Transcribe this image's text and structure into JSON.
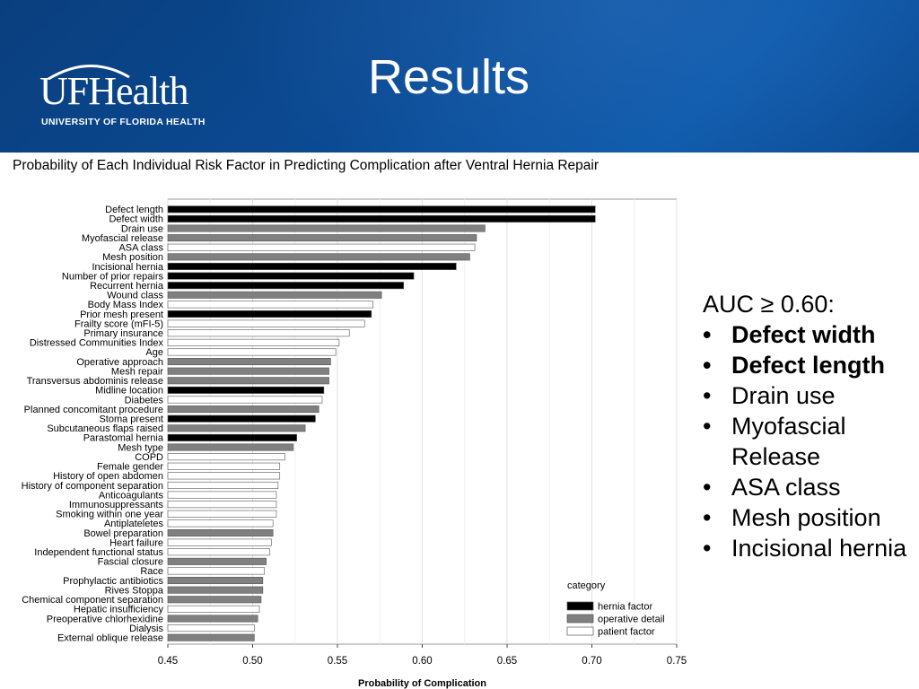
{
  "slide": {
    "title": "Results",
    "logo": {
      "wordmark": "UFHealth",
      "subtitle": "UNIVERSITY OF FLORIDA HEALTH"
    }
  },
  "colors": {
    "header_bg": "#0b4a93",
    "hernia_factor": "#000000",
    "operative_detail": "#808080",
    "patient_factor": "#ffffff"
  },
  "chart_data": {
    "type": "bar",
    "orientation": "horizontal",
    "title": "Probability of Each Individual Risk Factor in Predicting Complication after Ventral Hernia Repair",
    "xlabel": "Probability of Complication",
    "ylabel": "",
    "xlim": [
      0.45,
      0.75
    ],
    "xticks": [
      "0.45",
      "0.50",
      "0.55",
      "0.60",
      "0.65",
      "0.70",
      "0.75"
    ],
    "grid": true,
    "legend": {
      "title": "category",
      "placement": "bottom-right",
      "entries": [
        {
          "label": "hernia factor",
          "key": "hernia"
        },
        {
          "label": "operative detail",
          "key": "operative"
        },
        {
          "label": "patient factor",
          "key": "patient"
        }
      ]
    },
    "bars": [
      {
        "label": "Defect length",
        "value": 0.702,
        "category": "hernia"
      },
      {
        "label": "Defect width",
        "value": 0.702,
        "category": "hernia"
      },
      {
        "label": "Drain use",
        "value": 0.637,
        "category": "operative"
      },
      {
        "label": "Myofascial release",
        "value": 0.632,
        "category": "operative"
      },
      {
        "label": "ASA class",
        "value": 0.631,
        "category": "patient"
      },
      {
        "label": "Mesh position",
        "value": 0.628,
        "category": "operative"
      },
      {
        "label": "Incisional hernia",
        "value": 0.62,
        "category": "hernia"
      },
      {
        "label": "Number of prior repairs",
        "value": 0.595,
        "category": "hernia"
      },
      {
        "label": "Recurrent hernia",
        "value": 0.589,
        "category": "hernia"
      },
      {
        "label": "Wound class",
        "value": 0.576,
        "category": "operative"
      },
      {
        "label": "Body Mass Index",
        "value": 0.571,
        "category": "patient"
      },
      {
        "label": "Prior mesh present",
        "value": 0.57,
        "category": "hernia"
      },
      {
        "label": "Frailty score (mFI-5)",
        "value": 0.566,
        "category": "patient"
      },
      {
        "label": "Primary insurance",
        "value": 0.557,
        "category": "patient"
      },
      {
        "label": "Distressed Communities Index",
        "value": 0.551,
        "category": "patient"
      },
      {
        "label": "Age",
        "value": 0.549,
        "category": "patient"
      },
      {
        "label": "Operative approach",
        "value": 0.546,
        "category": "operative"
      },
      {
        "label": "Mesh repair",
        "value": 0.545,
        "category": "operative"
      },
      {
        "label": "Transversus abdominis release",
        "value": 0.545,
        "category": "operative"
      },
      {
        "label": "Midline location",
        "value": 0.542,
        "category": "hernia"
      },
      {
        "label": "Diabetes",
        "value": 0.541,
        "category": "patient"
      },
      {
        "label": "Planned concomitant procedure",
        "value": 0.539,
        "category": "operative"
      },
      {
        "label": "Stoma present",
        "value": 0.537,
        "category": "hernia"
      },
      {
        "label": "Subcutaneous flaps raised",
        "value": 0.531,
        "category": "operative"
      },
      {
        "label": "Parastomal hernia",
        "value": 0.526,
        "category": "hernia"
      },
      {
        "label": "Mesh type",
        "value": 0.524,
        "category": "operative"
      },
      {
        "label": "COPD",
        "value": 0.519,
        "category": "patient"
      },
      {
        "label": "Female gender",
        "value": 0.516,
        "category": "patient"
      },
      {
        "label": "History of open abdomen",
        "value": 0.516,
        "category": "patient"
      },
      {
        "label": "History of component separation",
        "value": 0.515,
        "category": "patient"
      },
      {
        "label": "Anticoagulants",
        "value": 0.514,
        "category": "patient"
      },
      {
        "label": "Immunosuppressants",
        "value": 0.514,
        "category": "patient"
      },
      {
        "label": "Smoking within one year",
        "value": 0.514,
        "category": "patient"
      },
      {
        "label": "Antiplateletes",
        "value": 0.512,
        "category": "patient"
      },
      {
        "label": "Bowel preparation",
        "value": 0.512,
        "category": "operative"
      },
      {
        "label": "Heart failure",
        "value": 0.511,
        "category": "patient"
      },
      {
        "label": "Independent functional status",
        "value": 0.51,
        "category": "patient"
      },
      {
        "label": "Fascial closure",
        "value": 0.508,
        "category": "operative"
      },
      {
        "label": "Race",
        "value": 0.507,
        "category": "patient"
      },
      {
        "label": "Prophylactic antibiotics",
        "value": 0.506,
        "category": "operative"
      },
      {
        "label": "Rives Stoppa",
        "value": 0.506,
        "category": "operative"
      },
      {
        "label": "Chemical component separation",
        "value": 0.505,
        "category": "operative"
      },
      {
        "label": "Hepatic insufficiency",
        "value": 0.504,
        "category": "patient"
      },
      {
        "label": "Preoperative chlorhexidine",
        "value": 0.503,
        "category": "operative"
      },
      {
        "label": "Dialysis",
        "value": 0.501,
        "category": "patient"
      },
      {
        "label": "External oblique release",
        "value": 0.501,
        "category": "operative"
      }
    ]
  },
  "summary": {
    "heading": "AUC ≥ 0.60:",
    "items": [
      {
        "text": "Defect width",
        "bold": true
      },
      {
        "text": "Defect length",
        "bold": true
      },
      {
        "text": "Drain use",
        "bold": false
      },
      {
        "text": "Myofascial Release",
        "bold": false
      },
      {
        "text": "ASA class",
        "bold": false
      },
      {
        "text": "Mesh position",
        "bold": false
      },
      {
        "text": "Incisional hernia",
        "bold": false
      }
    ]
  }
}
